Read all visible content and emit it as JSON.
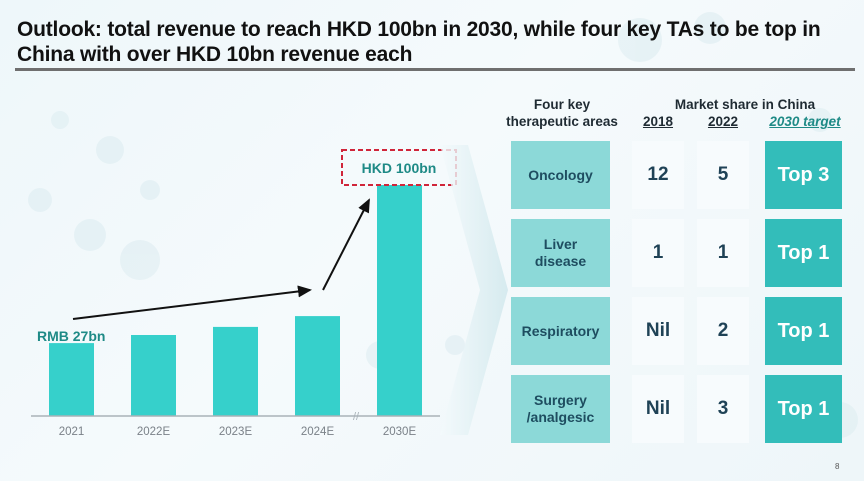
{
  "slide": {
    "title": "Outlook: total revenue to reach HKD 100bn in 2030, while four key TAs to be top in China with over HKD 10bn revenue each",
    "page_number": "8"
  },
  "chart_data": {
    "type": "bar",
    "title": "",
    "xlabel": "",
    "ylabel": "",
    "categories": [
      "2021",
      "2022E",
      "2023E",
      "2024E",
      "2030E"
    ],
    "values": [
      27,
      30,
      33,
      37,
      100
    ],
    "axis_break_before": "2030E",
    "annotations": {
      "start_label": "RMB 27bn",
      "end_label": "HKD 100bn"
    },
    "grid": false,
    "colors": {
      "bar": "#36d0cb",
      "arrow": "#111111",
      "label": "#1e8a86",
      "callout_border": "#d0253a",
      "axis": "#a9b2b8",
      "tick": "#7a8188"
    }
  },
  "table": {
    "header_ta": "Four key therapeutic areas",
    "header_ta_line1": "Four key",
    "header_ta_line2": "therapeutic areas",
    "header_market": "Market share in China",
    "columns": [
      "2018",
      "2022",
      "2030 target"
    ],
    "rows": [
      {
        "ta_line1": "Oncology",
        "ta_line2": "",
        "y2018": "12",
        "y2022": "5",
        "target": "Top 3"
      },
      {
        "ta_line1": "Liver",
        "ta_line2": "disease",
        "y2018": "1",
        "y2022": "1",
        "target": "Top 1"
      },
      {
        "ta_line1": "Respiratory",
        "ta_line2": "",
        "y2018": "Nil",
        "y2022": "2",
        "target": "Top 1"
      },
      {
        "ta_line1": "Surgery",
        "ta_line2": "/analgesic",
        "y2018": "Nil",
        "y2022": "3",
        "target": "Top 1"
      }
    ]
  }
}
